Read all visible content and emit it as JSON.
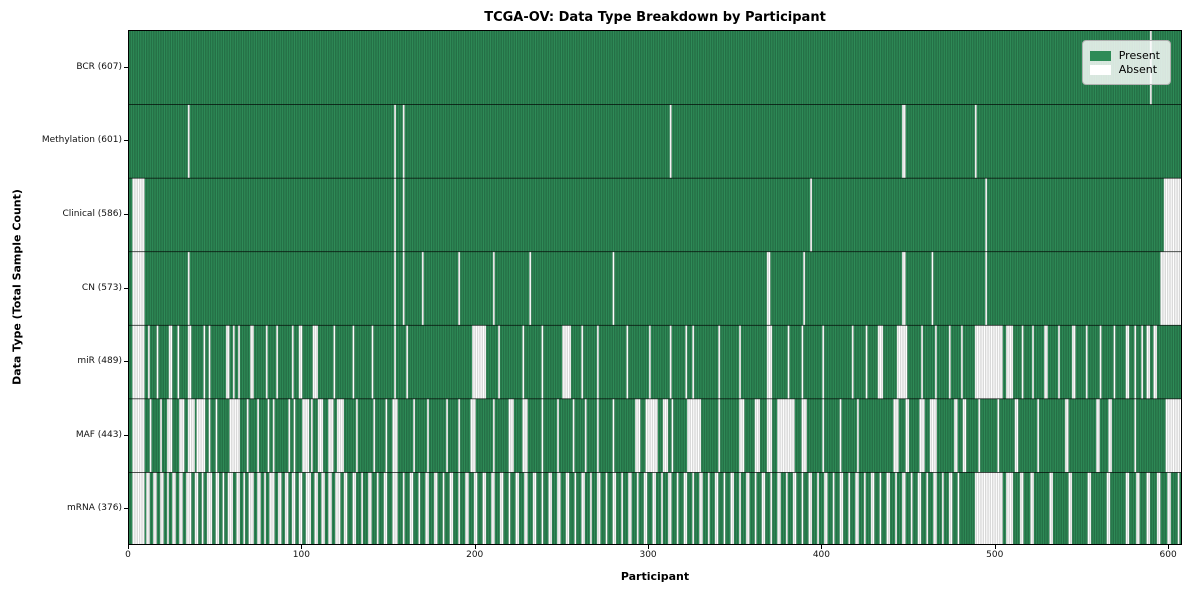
{
  "chart_data": {
    "type": "heatmap",
    "title": "TCGA-OV: Data Type Breakdown by Participant",
    "xlabel": "Participant",
    "ylabel": "Data Type (Total Sample Count)",
    "x_ticks": [
      0,
      100,
      200,
      300,
      400,
      500,
      600
    ],
    "n_participants": 608,
    "xlim": [
      0,
      608
    ],
    "grid": false,
    "legend": [
      "Present",
      "Absent"
    ],
    "legend_position": "upper right",
    "colors": {
      "present": "#2E8B57",
      "absent": "#ffffff",
      "present_edge": "rgba(0,0,0,0.30)",
      "absent_edge": "rgba(150,150,150,0.55)",
      "row_divider": "rgba(0,0,0,0.75)"
    },
    "rows": [
      {
        "label": "BCR (607)",
        "name": "BCR",
        "present_count": 607,
        "absent_ranges": [
          [
            589,
            589
          ]
        ]
      },
      {
        "label": "Methylation (601)",
        "name": "Methylation",
        "present_count": 601,
        "absent_ranges": [
          [
            34,
            34
          ],
          [
            153,
            153
          ],
          [
            158,
            158
          ],
          [
            312,
            312
          ],
          [
            446,
            447
          ],
          [
            488,
            488
          ]
        ]
      },
      {
        "label": "Clinical (586)",
        "name": "Clinical",
        "present_count": 586,
        "absent_ranges": [
          [
            2,
            8
          ],
          [
            153,
            153
          ],
          [
            158,
            158
          ],
          [
            393,
            393
          ],
          [
            494,
            494
          ],
          [
            597,
            607
          ]
        ]
      },
      {
        "label": "CN (573)",
        "name": "CN",
        "present_count": 573,
        "absent_ranges": [
          [
            2,
            8
          ],
          [
            34,
            34
          ],
          [
            153,
            153
          ],
          [
            158,
            158
          ],
          [
            169,
            169
          ],
          [
            190,
            190
          ],
          [
            210,
            210
          ],
          [
            231,
            231
          ],
          [
            279,
            279
          ],
          [
            368,
            369
          ],
          [
            389,
            389
          ],
          [
            446,
            447
          ],
          [
            463,
            463
          ],
          [
            494,
            494
          ],
          [
            595,
            607
          ]
        ]
      },
      {
        "label": "miR (489)",
        "name": "miR",
        "present_count": 489,
        "absent_ranges": [
          [
            2,
            8
          ],
          [
            11,
            11
          ],
          [
            16,
            16
          ],
          [
            23,
            24
          ],
          [
            28,
            28
          ],
          [
            34,
            35
          ],
          [
            43,
            43
          ],
          [
            46,
            46
          ],
          [
            56,
            57
          ],
          [
            60,
            60
          ],
          [
            63,
            63
          ],
          [
            70,
            71
          ],
          [
            79,
            79
          ],
          [
            85,
            85
          ],
          [
            94,
            94
          ],
          [
            98,
            99
          ],
          [
            106,
            108
          ],
          [
            118,
            118
          ],
          [
            129,
            129
          ],
          [
            140,
            140
          ],
          [
            153,
            153
          ],
          [
            160,
            160
          ],
          [
            198,
            205
          ],
          [
            213,
            213
          ],
          [
            227,
            227
          ],
          [
            238,
            238
          ],
          [
            250,
            254
          ],
          [
            261,
            261
          ],
          [
            270,
            270
          ],
          [
            287,
            287
          ],
          [
            300,
            300
          ],
          [
            312,
            312
          ],
          [
            321,
            321
          ],
          [
            325,
            325
          ],
          [
            340,
            340
          ],
          [
            352,
            352
          ],
          [
            368,
            370
          ],
          [
            380,
            380
          ],
          [
            388,
            388
          ],
          [
            400,
            400
          ],
          [
            417,
            417
          ],
          [
            425,
            425
          ],
          [
            432,
            434
          ],
          [
            443,
            448
          ],
          [
            457,
            457
          ],
          [
            465,
            465
          ],
          [
            473,
            473
          ],
          [
            480,
            480
          ],
          [
            488,
            503
          ],
          [
            506,
            509
          ],
          [
            515,
            515
          ],
          [
            521,
            521
          ],
          [
            528,
            529
          ],
          [
            536,
            536
          ],
          [
            544,
            545
          ],
          [
            552,
            552
          ],
          [
            560,
            560
          ],
          [
            568,
            568
          ],
          [
            575,
            576
          ],
          [
            580,
            580
          ],
          [
            584,
            584
          ],
          [
            587,
            588
          ],
          [
            591,
            592
          ]
        ]
      },
      {
        "label": "MAF (443)",
        "name": "MAF",
        "present_count": 443,
        "absent_ranges": [
          [
            2,
            8
          ],
          [
            12,
            12
          ],
          [
            18,
            18
          ],
          [
            22,
            24
          ],
          [
            29,
            31
          ],
          [
            34,
            37
          ],
          [
            39,
            43
          ],
          [
            46,
            46
          ],
          [
            50,
            50
          ],
          [
            58,
            63
          ],
          [
            68,
            68
          ],
          [
            74,
            74
          ],
          [
            80,
            80
          ],
          [
            83,
            83
          ],
          [
            92,
            92
          ],
          [
            95,
            95
          ],
          [
            100,
            103
          ],
          [
            105,
            105
          ],
          [
            109,
            111
          ],
          [
            115,
            117
          ],
          [
            120,
            123
          ],
          [
            131,
            131
          ],
          [
            141,
            141
          ],
          [
            148,
            148
          ],
          [
            152,
            154
          ],
          [
            164,
            164
          ],
          [
            172,
            172
          ],
          [
            183,
            183
          ],
          [
            190,
            190
          ],
          [
            197,
            199
          ],
          [
            210,
            210
          ],
          [
            219,
            221
          ],
          [
            227,
            229
          ],
          [
            238,
            238
          ],
          [
            247,
            247
          ],
          [
            256,
            256
          ],
          [
            263,
            263
          ],
          [
            270,
            270
          ],
          [
            279,
            279
          ],
          [
            292,
            294
          ],
          [
            298,
            304
          ],
          [
            308,
            310
          ],
          [
            313,
            313
          ],
          [
            322,
            329
          ],
          [
            340,
            340
          ],
          [
            352,
            354
          ],
          [
            361,
            363
          ],
          [
            368,
            370
          ],
          [
            374,
            383
          ],
          [
            388,
            390
          ],
          [
            400,
            400
          ],
          [
            410,
            410
          ],
          [
            420,
            420
          ],
          [
            441,
            443
          ],
          [
            448,
            449
          ],
          [
            456,
            458
          ],
          [
            462,
            465
          ],
          [
            476,
            477
          ],
          [
            481,
            482
          ],
          [
            490,
            490
          ],
          [
            501,
            501
          ],
          [
            511,
            512
          ],
          [
            524,
            524
          ],
          [
            540,
            541
          ],
          [
            558,
            559
          ],
          [
            565,
            566
          ],
          [
            580,
            580
          ],
          [
            598,
            607
          ]
        ]
      },
      {
        "label": "mRNA (376)",
        "name": "mRNA",
        "present_count": 376,
        "absent_ranges": [
          [
            2,
            8
          ],
          [
            10,
            11
          ],
          [
            14,
            15
          ],
          [
            18,
            19
          ],
          [
            22,
            22
          ],
          [
            25,
            26
          ],
          [
            29,
            30
          ],
          [
            33,
            35
          ],
          [
            38,
            39
          ],
          [
            42,
            42
          ],
          [
            45,
            47
          ],
          [
            50,
            51
          ],
          [
            54,
            54
          ],
          [
            57,
            59
          ],
          [
            62,
            63
          ],
          [
            66,
            66
          ],
          [
            69,
            71
          ],
          [
            74,
            75
          ],
          [
            78,
            78
          ],
          [
            81,
            83
          ],
          [
            86,
            87
          ],
          [
            90,
            91
          ],
          [
            94,
            95
          ],
          [
            98,
            99
          ],
          [
            102,
            104
          ],
          [
            107,
            108
          ],
          [
            111,
            112
          ],
          [
            115,
            116
          ],
          [
            119,
            121
          ],
          [
            124,
            125
          ],
          [
            129,
            130
          ],
          [
            134,
            134
          ],
          [
            138,
            139
          ],
          [
            143,
            143
          ],
          [
            147,
            148
          ],
          [
            152,
            154
          ],
          [
            158,
            158
          ],
          [
            162,
            163
          ],
          [
            167,
            167
          ],
          [
            171,
            172
          ],
          [
            176,
            177
          ],
          [
            181,
            181
          ],
          [
            185,
            186
          ],
          [
            190,
            190
          ],
          [
            194,
            195
          ],
          [
            199,
            200
          ],
          [
            204,
            205
          ],
          [
            209,
            210
          ],
          [
            214,
            215
          ],
          [
            219,
            219
          ],
          [
            223,
            224
          ],
          [
            228,
            229
          ],
          [
            233,
            234
          ],
          [
            238,
            238
          ],
          [
            242,
            243
          ],
          [
            247,
            248
          ],
          [
            252,
            253
          ],
          [
            257,
            257
          ],
          [
            261,
            262
          ],
          [
            266,
            266
          ],
          [
            270,
            271
          ],
          [
            275,
            275
          ],
          [
            279,
            280
          ],
          [
            284,
            284
          ],
          [
            288,
            289
          ],
          [
            293,
            293
          ],
          [
            297,
            298
          ],
          [
            302,
            303
          ],
          [
            307,
            307
          ],
          [
            311,
            312
          ],
          [
            316,
            316
          ],
          [
            320,
            321
          ],
          [
            325,
            325
          ],
          [
            329,
            330
          ],
          [
            334,
            334
          ],
          [
            338,
            339
          ],
          [
            343,
            343
          ],
          [
            347,
            348
          ],
          [
            352,
            352
          ],
          [
            356,
            357
          ],
          [
            361,
            361
          ],
          [
            365,
            366
          ],
          [
            370,
            370
          ],
          [
            374,
            375
          ],
          [
            379,
            379
          ],
          [
            383,
            384
          ],
          [
            388,
            388
          ],
          [
            392,
            393
          ],
          [
            397,
            397
          ],
          [
            401,
            402
          ],
          [
            406,
            406
          ],
          [
            410,
            411
          ],
          [
            415,
            415
          ],
          [
            419,
            420
          ],
          [
            424,
            424
          ],
          [
            428,
            429
          ],
          [
            433,
            433
          ],
          [
            437,
            438
          ],
          [
            442,
            442
          ],
          [
            446,
            447
          ],
          [
            451,
            451
          ],
          [
            455,
            456
          ],
          [
            460,
            460
          ],
          [
            464,
            465
          ],
          [
            469,
            469
          ],
          [
            473,
            474
          ],
          [
            478,
            478
          ],
          [
            488,
            503
          ],
          [
            506,
            509
          ],
          [
            514,
            515
          ],
          [
            520,
            521
          ],
          [
            531,
            532
          ],
          [
            542,
            543
          ],
          [
            553,
            554
          ],
          [
            564,
            565
          ],
          [
            575,
            576
          ],
          [
            581,
            582
          ],
          [
            587,
            588
          ],
          [
            593,
            594
          ],
          [
            599,
            600
          ],
          [
            605,
            605
          ]
        ]
      }
    ]
  }
}
